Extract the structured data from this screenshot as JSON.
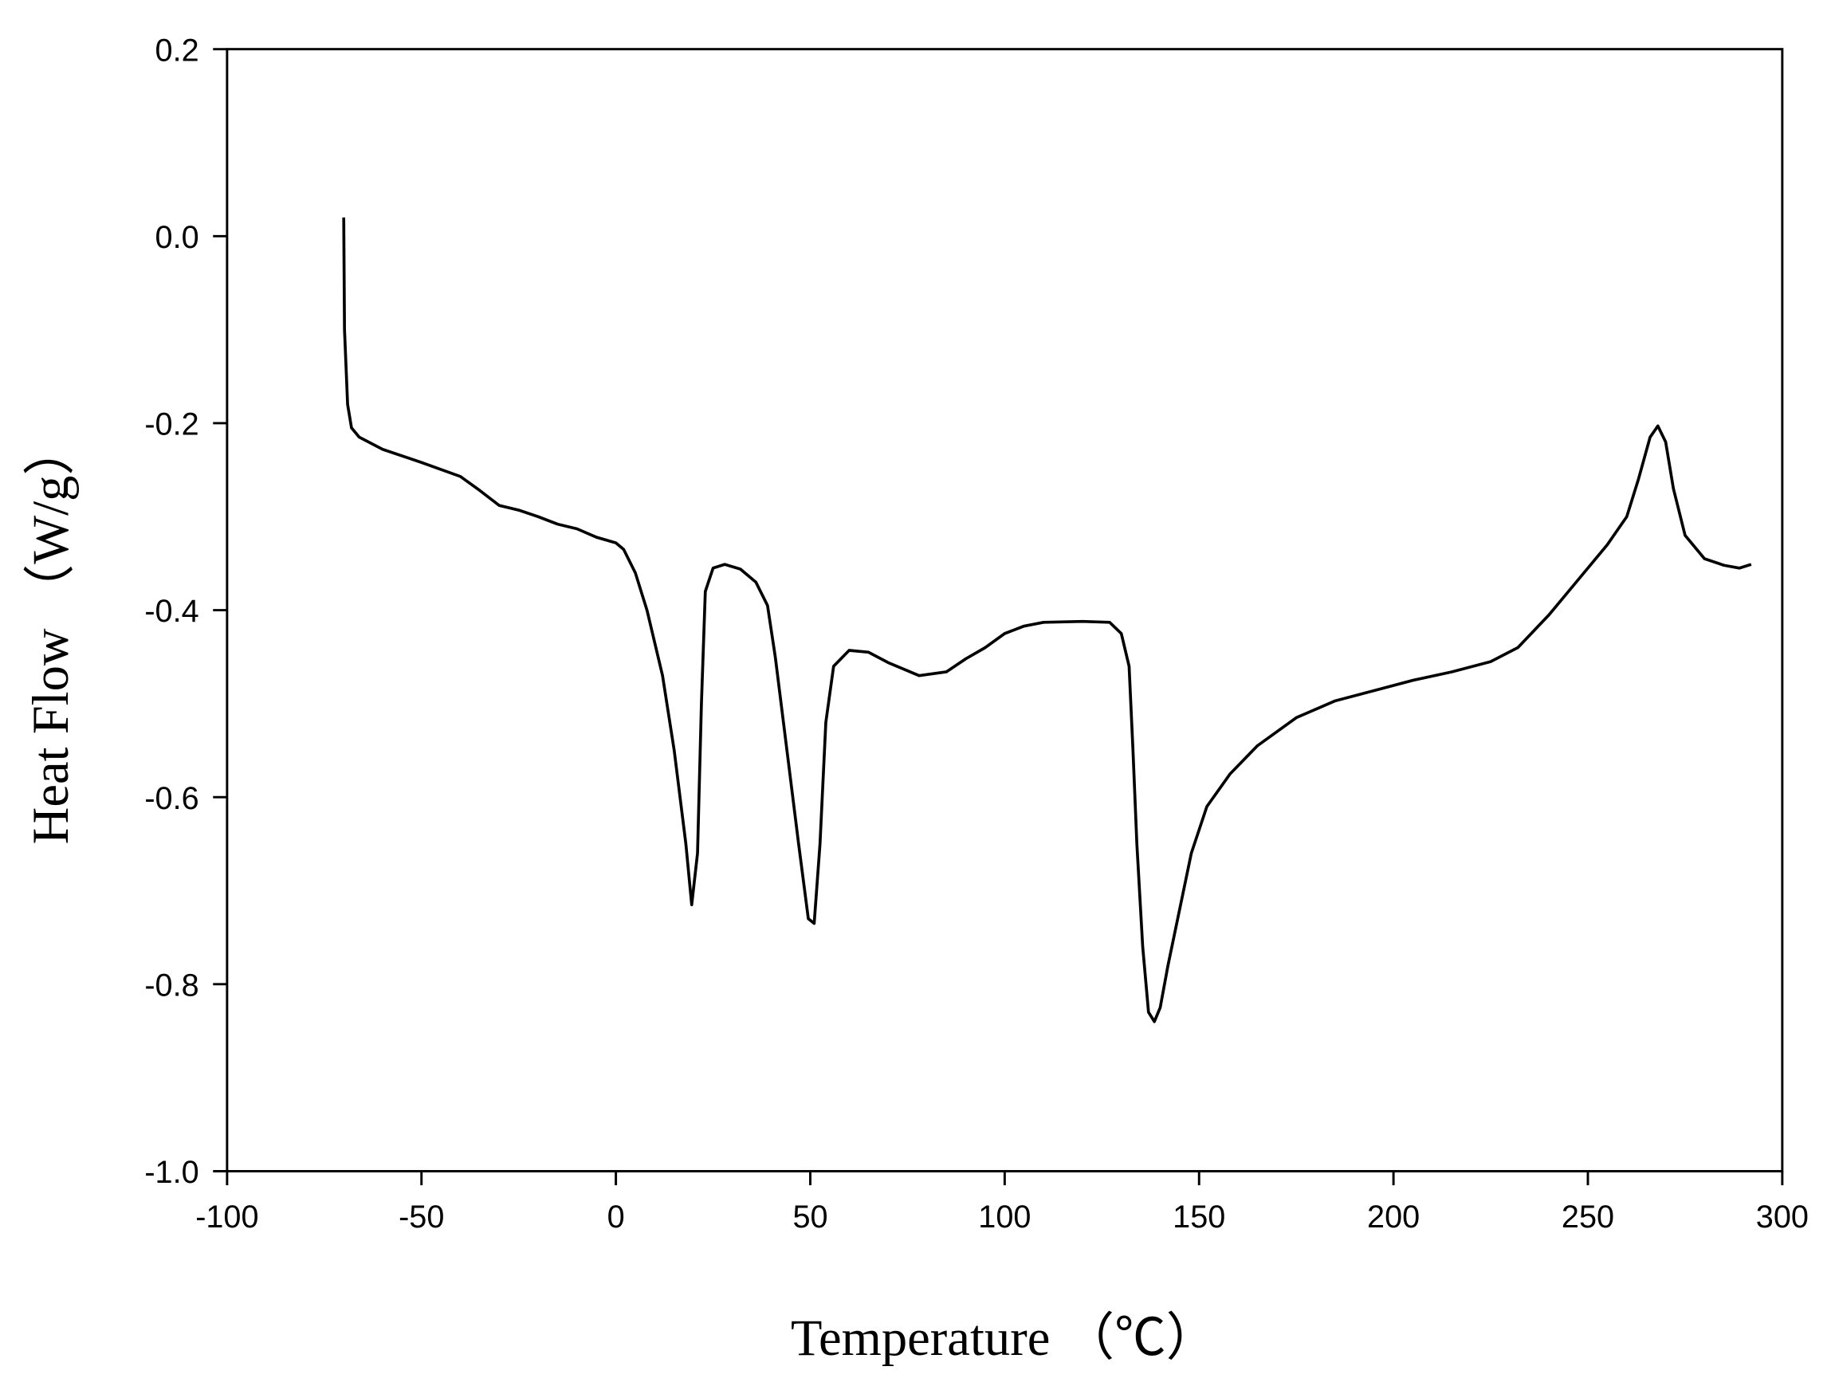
{
  "chart_data": {
    "type": "line",
    "xlabel": "Temperature （℃）",
    "ylabel": "Heat Flow （W/g）",
    "xlim": [
      -100,
      300
    ],
    "xticks": [
      -100,
      -50,
      0,
      50,
      100,
      150,
      200,
      250,
      300
    ],
    "ylim": [
      -1.0,
      0.2
    ],
    "yticks": [
      0.2,
      {
        "value": 0,
        "label": "0.0"
      },
      -0.2,
      -0.4,
      -0.6,
      -0.8,
      {
        "value": -1.0,
        "label": "-1.0"
      }
    ],
    "series": [
      {
        "color": "#000000",
        "x": [
          -70,
          -69.8,
          -69,
          -68,
          -66,
          -60,
          -50,
          -40,
          -35,
          -30,
          -25,
          -20,
          -15,
          -10,
          -5,
          0,
          2,
          5,
          8,
          12,
          15,
          18,
          19.5,
          21,
          22,
          23,
          25,
          28,
          32,
          36,
          39,
          41,
          44,
          47,
          49.5,
          51,
          52.5,
          54,
          56,
          60,
          65,
          70,
          78,
          85,
          90,
          95,
          100,
          105,
          110,
          120,
          127,
          130,
          132,
          133,
          134,
          135.5,
          137,
          138.5,
          140,
          142,
          145,
          148,
          152,
          158,
          165,
          175,
          185,
          195,
          205,
          215,
          225,
          232,
          240,
          248,
          255,
          260,
          263,
          266,
          268,
          270,
          272,
          275,
          280,
          285,
          289,
          292
        ],
        "values": [
          0.02,
          -0.1,
          -0.18,
          -0.205,
          -0.215,
          -0.228,
          -0.242,
          -0.257,
          -0.272,
          -0.288,
          -0.293,
          -0.3,
          -0.308,
          -0.313,
          -0.322,
          -0.328,
          -0.335,
          -0.36,
          -0.4,
          -0.47,
          -0.55,
          -0.65,
          -0.715,
          -0.66,
          -0.5,
          -0.38,
          -0.355,
          -0.351,
          -0.356,
          -0.37,
          -0.395,
          -0.45,
          -0.55,
          -0.65,
          -0.73,
          -0.735,
          -0.65,
          -0.52,
          -0.46,
          -0.443,
          -0.445,
          -0.456,
          -0.47,
          -0.466,
          -0.452,
          -0.44,
          -0.425,
          -0.417,
          -0.413,
          -0.412,
          -0.413,
          -0.425,
          -0.46,
          -0.55,
          -0.65,
          -0.76,
          -0.83,
          -0.84,
          -0.825,
          -0.78,
          -0.72,
          -0.66,
          -0.61,
          -0.575,
          -0.545,
          -0.515,
          -0.497,
          -0.486,
          -0.475,
          -0.466,
          -0.455,
          -0.44,
          -0.405,
          -0.365,
          -0.33,
          -0.3,
          -0.26,
          -0.215,
          -0.203,
          -0.22,
          -0.27,
          -0.32,
          -0.345,
          -0.352,
          -0.355,
          -0.351
        ]
      }
    ]
  }
}
